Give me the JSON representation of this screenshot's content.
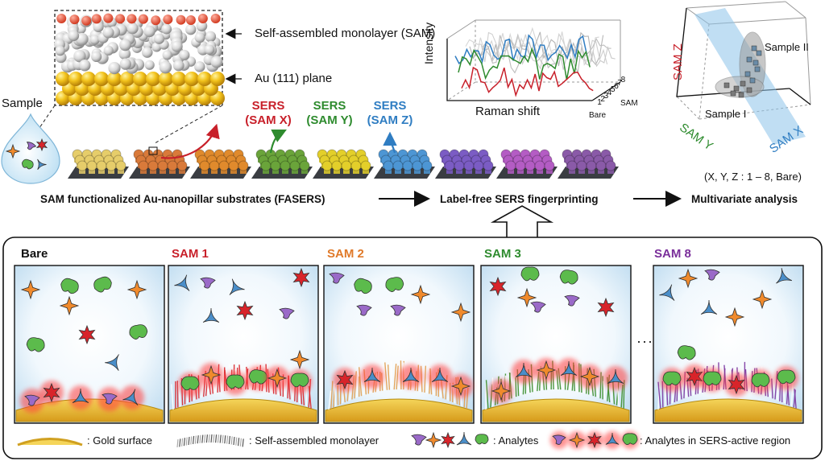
{
  "top": {
    "sample_label": "Sample",
    "sam_label": "Self-assembled monolayer (SAM)",
    "au_label": "Au (111) plane",
    "sers_tags": [
      {
        "line1": "SERS",
        "line2": "(SAM X)",
        "color": "#c8202a"
      },
      {
        "line1": "SERS",
        "line2": "(SAM Y)",
        "color": "#2e8b2e"
      },
      {
        "line1": "SERS",
        "line2": "(SAM Z)",
        "color": "#2f7dc2"
      }
    ],
    "substrate_colors": [
      "#e6cd6a",
      "#d97a3a",
      "#e08a2c",
      "#6aa43a",
      "#e3cf2a",
      "#4d96d4",
      "#7b5cc4",
      "#b45cc4",
      "#8a5aa8"
    ],
    "raman": {
      "ylabel": "Intensity",
      "xlabel": "Raman shift",
      "depth_labels": [
        "Bare",
        "1",
        "2",
        "3",
        "4",
        "5",
        "6",
        "7",
        "8"
      ],
      "sam_axis": "SAM",
      "line_colors": [
        "#c8202a",
        "#2e8b2e",
        "#2f7dc2"
      ]
    },
    "multivariate": {
      "z_label": "SAM Z",
      "y_label": "SAM Y",
      "x_label": "SAM X",
      "sample1": "Sample I",
      "sample2": "Sample II",
      "range_note": "(X, Y, Z : 1 – 8, Bare)"
    },
    "flow": {
      "step1": "SAM  functionalized Au-nanopillar substrates (FASERS)",
      "step2": "Label-free SERS fingerprinting",
      "step3": "Multivariate analysis"
    }
  },
  "panels": [
    {
      "title": "Bare",
      "color": "#111111",
      "fiber": "none"
    },
    {
      "title": "SAM 1",
      "color": "#c8202a",
      "fiber": "#d8242a"
    },
    {
      "title": "SAM 2",
      "color": "#e07a2a",
      "fiber": "#e2a050"
    },
    {
      "title": "SAM 3",
      "color": "#2e8b2e",
      "fiber": "#3a8e2a"
    },
    {
      "title": "SAM 8",
      "color": "#7a2e9a",
      "fiber": "#7a35a0"
    }
  ],
  "ellipsis": "···",
  "legend": {
    "gold": ": Gold surface",
    "sam": ": Self-assembled monolayer",
    "analytes": ": Analytes",
    "active": ": Analytes in SERS-active region"
  },
  "analyte_colors": {
    "orange": "#f08a2c",
    "red": "#d8242a",
    "blue": "#4a8ec9",
    "purple": "#9a6ac8",
    "green": "#5cbb4c"
  }
}
